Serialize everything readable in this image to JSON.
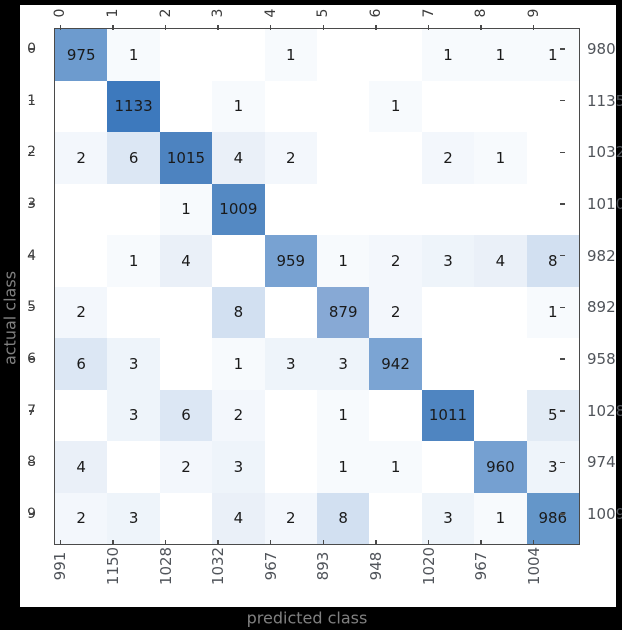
{
  "chart_data": {
    "type": "heatmap",
    "title": "",
    "xlabel": "predicted class",
    "ylabel": "actual class",
    "x_tick_labels": [
      "0",
      "1",
      "2",
      "3",
      "4",
      "5",
      "6",
      "7",
      "8",
      "9"
    ],
    "y_tick_labels": [
      "0",
      "1",
      "2",
      "3",
      "4",
      "5",
      "6",
      "7",
      "8",
      "9"
    ],
    "matrix": [
      [
        975,
        1,
        0,
        0,
        1,
        0,
        0,
        1,
        1,
        1
      ],
      [
        0,
        1133,
        0,
        1,
        0,
        0,
        1,
        0,
        0,
        0
      ],
      [
        2,
        6,
        1015,
        4,
        2,
        0,
        0,
        2,
        1,
        0
      ],
      [
        0,
        0,
        1,
        1009,
        0,
        0,
        0,
        0,
        0,
        0
      ],
      [
        0,
        1,
        4,
        0,
        959,
        1,
        2,
        3,
        4,
        8
      ],
      [
        2,
        0,
        0,
        8,
        0,
        879,
        2,
        0,
        0,
        1
      ],
      [
        6,
        3,
        0,
        1,
        3,
        3,
        942,
        0,
        0,
        0
      ],
      [
        0,
        3,
        6,
        2,
        0,
        1,
        0,
        1011,
        0,
        5
      ],
      [
        4,
        0,
        2,
        3,
        0,
        1,
        1,
        0,
        960,
        3
      ],
      [
        2,
        3,
        0,
        4,
        2,
        8,
        0,
        3,
        1,
        986
      ]
    ],
    "row_totals": [
      980,
      1135,
      1032,
      1010,
      982,
      892,
      958,
      1028,
      974,
      1009
    ],
    "col_totals": [
      991,
      1150,
      1028,
      1032,
      967,
      893,
      948,
      1020,
      967,
      1004
    ],
    "value_range": [
      0,
      1133
    ],
    "zero_cells_blank": true,
    "grid": false,
    "legend": "none",
    "colormap_anchors": [
      [
        0,
        "#ffffff"
      ],
      [
        1,
        "#f7fafd"
      ],
      [
        2,
        "#f3f7fc"
      ],
      [
        3,
        "#eef4fa"
      ],
      [
        4,
        "#eaf0f8"
      ],
      [
        5,
        "#e2ebf5"
      ],
      [
        6,
        "#dce7f4"
      ],
      [
        8,
        "#d2e0f1"
      ],
      [
        879,
        "#87a9d5"
      ],
      [
        942,
        "#7ba4d3"
      ],
      [
        959,
        "#78a2d2"
      ],
      [
        960,
        "#75a0d1"
      ],
      [
        975,
        "#6d9bce"
      ],
      [
        986,
        "#6496c9"
      ],
      [
        1009,
        "#5489c3"
      ],
      [
        1011,
        "#4f85c1"
      ],
      [
        1015,
        "#4d83c0"
      ],
      [
        1133,
        "#3d79bd"
      ]
    ]
  },
  "colors": {
    "background": "#000000",
    "figure_background": "#ffffff",
    "box_border": "#4a4a4a",
    "tick": "#4a4a4a",
    "cell_text": "#1a1a1a",
    "tick_label_text": "#3a3a3a",
    "total_text": "#50545a",
    "axis_title_text": "#808080"
  }
}
